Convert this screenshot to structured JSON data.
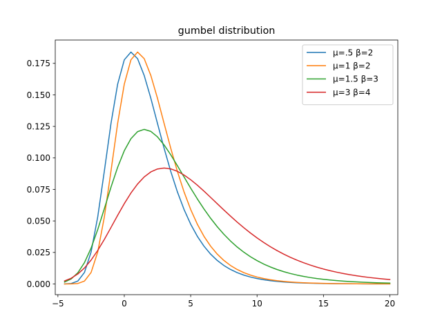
{
  "chart_data": {
    "type": "line",
    "title": "gumbel distribution",
    "xlabel": "",
    "ylabel": "",
    "xlim": [
      -5.2,
      20.6
    ],
    "ylim": [
      -0.0085,
      0.1935
    ],
    "xticks": [
      -5,
      0,
      5,
      10,
      15,
      20
    ],
    "xtick_labels": [
      "−5",
      "0",
      "5",
      "10",
      "15",
      "20"
    ],
    "yticks": [
      0.0,
      0.025,
      0.05,
      0.075,
      0.1,
      0.125,
      0.15,
      0.175
    ],
    "ytick_labels": [
      "0.000",
      "0.025",
      "0.050",
      "0.075",
      "0.100",
      "0.125",
      "0.150",
      "0.175"
    ],
    "grid": false,
    "legend_position": "upper right",
    "x_sampling": {
      "start": -4.5,
      "stop": 20.0,
      "step": 0.5
    },
    "series": [
      {
        "name": "μ=.5  β=2",
        "mu": 0.5,
        "beta": 2,
        "color": "#1f77b4"
      },
      {
        "name": "μ=1 β=2",
        "mu": 1,
        "beta": 2,
        "color": "#ff7f0e"
      },
      {
        "name": "μ=1.5  β=3",
        "mu": 1.5,
        "beta": 3,
        "color": "#2ca02c"
      },
      {
        "name": "μ=3  β=4",
        "mu": 3,
        "beta": 4,
        "color": "#d62728"
      }
    ]
  }
}
